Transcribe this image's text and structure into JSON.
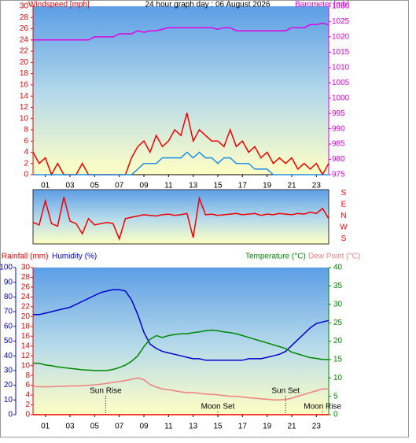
{
  "chart_data": [
    {
      "type": "line",
      "title": "24 hour graph day : 06 August 2026",
      "ylabel": "Windspeed [mph]",
      "y2label": "Barometer [mb]",
      "x": [
        0,
        0.5,
        1,
        1.5,
        2,
        2.5,
        3,
        3.5,
        4,
        4.5,
        5,
        5.5,
        6,
        6.5,
        7,
        7.5,
        8,
        8.5,
        9,
        9.5,
        10,
        10.5,
        11,
        11.5,
        12,
        12.5,
        13,
        13.5,
        14,
        14.5,
        15,
        15.5,
        16,
        16.5,
        17,
        17.5,
        18,
        18.5,
        19,
        19.5,
        20,
        20.5,
        21,
        21.5,
        22,
        22.5,
        23,
        23.5,
        24
      ],
      "xlim": [
        0,
        24
      ],
      "xticks": [
        {
          "value": 1,
          "label": "01"
        },
        {
          "value": 3,
          "label": "03"
        },
        {
          "value": 5,
          "label": "05"
        },
        {
          "value": 7,
          "label": "07"
        },
        {
          "value": 9,
          "label": "09"
        },
        {
          "value": 11,
          "label": "11"
        },
        {
          "value": 13,
          "label": "13"
        },
        {
          "value": 15,
          "label": "15"
        },
        {
          "value": 17,
          "label": "17"
        },
        {
          "value": 19,
          "label": "19"
        },
        {
          "value": 21,
          "label": "21"
        },
        {
          "value": 23,
          "label": "23"
        }
      ],
      "ylim": [
        0,
        30
      ],
      "yticks": [
        0,
        2,
        4,
        6,
        8,
        10,
        12,
        14,
        16,
        18,
        20,
        22,
        24,
        26,
        28,
        30
      ],
      "y2lim": [
        975,
        1030
      ],
      "y2ticks": [
        975,
        980,
        985,
        990,
        995,
        1000,
        1005,
        1010,
        1015,
        1020,
        1025,
        1030
      ],
      "series": [
        {
          "color": "#ee0000",
          "values": [
            4,
            2,
            3,
            0,
            2,
            0,
            0,
            0,
            2,
            0,
            0,
            0,
            0,
            0,
            0,
            0,
            3,
            5,
            6,
            4,
            7,
            5,
            6,
            8,
            7,
            11,
            6,
            8,
            7,
            6,
            6,
            5,
            8,
            5,
            6,
            4,
            5,
            3,
            4,
            2,
            3,
            2,
            3,
            1,
            2,
            1,
            2,
            0,
            2
          ]
        },
        {
          "color": "#1e8ee8",
          "values": [
            0,
            0,
            0,
            0,
            0,
            0,
            0,
            0,
            0,
            0,
            0,
            0,
            0,
            0,
            0,
            0,
            0,
            1,
            2,
            2,
            2,
            3,
            3,
            3,
            3,
            4,
            3,
            4,
            3,
            3,
            2,
            3,
            3,
            2,
            2,
            2,
            1,
            1,
            1,
            0,
            0,
            0,
            0,
            0,
            0,
            0,
            0,
            0,
            0
          ]
        },
        {
          "color": "#e000e0",
          "axis": "y2",
          "values": [
            1019,
            1019,
            1019,
            1019,
            1019,
            1019,
            1019,
            1019,
            1019,
            1019,
            1020,
            1020,
            1020,
            1020,
            1021,
            1021,
            1021,
            1022,
            1021.5,
            1022,
            1022,
            1022.5,
            1023,
            1023,
            1023,
            1023,
            1023,
            1023,
            1023,
            1023,
            1022.5,
            1023,
            1023,
            1022,
            1022,
            1022,
            1022,
            1022,
            1022,
            1022,
            1022,
            1022,
            1023,
            1023,
            1023,
            1024,
            1024,
            1024.5,
            1024
          ]
        }
      ]
    },
    {
      "type": "line",
      "x": [
        0,
        0.5,
        1,
        1.5,
        2,
        2.5,
        3,
        3.5,
        4,
        4.5,
        5,
        5.5,
        6,
        6.5,
        7,
        7.5,
        8,
        8.5,
        9,
        9.5,
        10,
        10.5,
        11,
        11.5,
        12,
        12.5,
        13,
        13.5,
        14,
        14.5,
        15,
        15.5,
        16,
        16.5,
        17,
        17.5,
        18,
        18.5,
        19,
        19.5,
        20,
        20.5,
        21,
        21.5,
        22,
        22.5,
        23,
        23.5,
        24
      ],
      "xlim": [
        0,
        24
      ],
      "ylim": [
        400,
        -28
      ],
      "yticks": [
        {
          "value": 0,
          "label": "S"
        },
        {
          "value": 90,
          "label": "E"
        },
        {
          "value": 180,
          "label": "N"
        },
        {
          "value": 270,
          "label": "W"
        },
        {
          "value": 360,
          "label": "S"
        }
      ],
      "series": [
        {
          "color": "#ee0000",
          "values": [
            230,
            250,
            60,
            240,
            260,
            30,
            220,
            240,
            320,
            200,
            250,
            240,
            230,
            240,
            360,
            200,
            190,
            180,
            170,
            175,
            180,
            170,
            165,
            175,
            170,
            160,
            350,
            40,
            170,
            165,
            175,
            170,
            165,
            160,
            170,
            165,
            160,
            175,
            165,
            170,
            160,
            165,
            170,
            160,
            165,
            150,
            160,
            120,
            200
          ]
        }
      ]
    },
    {
      "type": "line",
      "x": [
        0,
        0.5,
        1,
        1.5,
        2,
        2.5,
        3,
        3.5,
        4,
        4.5,
        5,
        5.5,
        6,
        6.5,
        7,
        7.5,
        8,
        8.5,
        9,
        9.5,
        10,
        10.5,
        11,
        11.5,
        12,
        12.5,
        13,
        13.5,
        14,
        14.5,
        15,
        15.5,
        16,
        16.5,
        17,
        17.5,
        18,
        18.5,
        19,
        19.5,
        20,
        20.5,
        21,
        21.5,
        22,
        22.5,
        23,
        23.5,
        24
      ],
      "xlim": [
        0,
        24
      ],
      "xticks": [
        {
          "value": 1,
          "label": "01"
        },
        {
          "value": 3,
          "label": "03"
        },
        {
          "value": 5,
          "label": "05"
        },
        {
          "value": 7,
          "label": "07"
        },
        {
          "value": 9,
          "label": "09"
        },
        {
          "value": 11,
          "label": "11"
        },
        {
          "value": 13,
          "label": "13"
        },
        {
          "value": 15,
          "label": "15"
        },
        {
          "value": 17,
          "label": "17"
        },
        {
          "value": 19,
          "label": "19"
        },
        {
          "value": 21,
          "label": "21"
        },
        {
          "value": 23,
          "label": "23"
        }
      ],
      "ylim": [
        0,
        30
      ],
      "yticks": [
        0,
        2,
        4,
        6,
        8,
        10,
        12,
        14,
        16,
        18,
        20,
        22,
        24,
        26,
        28,
        30
      ],
      "y2lim": [
        0,
        40
      ],
      "y2ticks": [
        0,
        5,
        10,
        15,
        20,
        25,
        30,
        35,
        40
      ],
      "y3lim": [
        0,
        100
      ],
      "y3ticks": [
        0,
        10,
        20,
        30,
        40,
        50,
        60,
        70,
        80,
        90,
        100
      ],
      "annotations": [
        {
          "text": "Sun Rise",
          "x": 5.9
        },
        {
          "text": "Moon Set",
          "x": 15
        },
        {
          "text": "Sun Set",
          "x": 20.5
        },
        {
          "text": "Moon Rise",
          "x": 23.5
        }
      ],
      "series": [
        {
          "name": "Rainfall (mm)",
          "color": "#ee0000",
          "values": [
            0,
            0,
            0,
            0,
            0,
            0,
            0,
            0,
            0,
            0,
            0,
            0,
            0,
            0,
            0,
            0,
            0,
            0,
            0,
            0,
            0,
            0,
            0,
            0,
            0,
            0,
            0,
            0,
            0,
            0,
            0,
            0,
            0,
            0,
            0,
            0,
            0,
            0,
            0,
            0,
            0,
            0,
            0,
            0,
            0,
            0,
            0,
            0,
            0
          ]
        },
        {
          "name": "Humidity (%)",
          "color": "#0000cc",
          "axis": "y3",
          "values": [
            68,
            68,
            69,
            70,
            71,
            72,
            73,
            75,
            77,
            79,
            81,
            83,
            84,
            85,
            85,
            84,
            78,
            68,
            56,
            48,
            45,
            43,
            42,
            41,
            40,
            39,
            38,
            38,
            37,
            37,
            37,
            37,
            37,
            37,
            37,
            38,
            38,
            38,
            39,
            40,
            41,
            43,
            47,
            51,
            55,
            59,
            62,
            63,
            64
          ]
        },
        {
          "name": "Temperature (°C)",
          "color": "#008800",
          "axis": "y2",
          "values": [
            14,
            14,
            13.5,
            13.3,
            13,
            12.8,
            12.6,
            12.4,
            12.2,
            12.1,
            12,
            12,
            12,
            12.3,
            12.8,
            13.5,
            14.5,
            16,
            18.5,
            20.5,
            21.5,
            21,
            21.5,
            21.8,
            22,
            22,
            22.3,
            22.5,
            22.8,
            23,
            22.8,
            22.5,
            22.3,
            22,
            21.5,
            21,
            20.5,
            20,
            19.5,
            19,
            18.5,
            18,
            17,
            16.5,
            16,
            15.5,
            15.3,
            15,
            15
          ]
        },
        {
          "name": "Dew Point (°C)",
          "color": "#f08080",
          "axis": "y2",
          "values": [
            7.7,
            7.6,
            7.6,
            7.6,
            7.7,
            7.7,
            7.8,
            7.8,
            7.9,
            8,
            8.1,
            8.3,
            8.5,
            8.8,
            9,
            9.3,
            9.6,
            10,
            9.5,
            8.2,
            7.5,
            7,
            6.8,
            6.5,
            6.2,
            6,
            6,
            5.8,
            5.6,
            5.5,
            5.4,
            5.2,
            5,
            5,
            4.8,
            4.6,
            4.5,
            4.3,
            4.2,
            4,
            4,
            4.1,
            4.5,
            5,
            5.5,
            6,
            6.5,
            7,
            7
          ]
        }
      ]
    }
  ]
}
